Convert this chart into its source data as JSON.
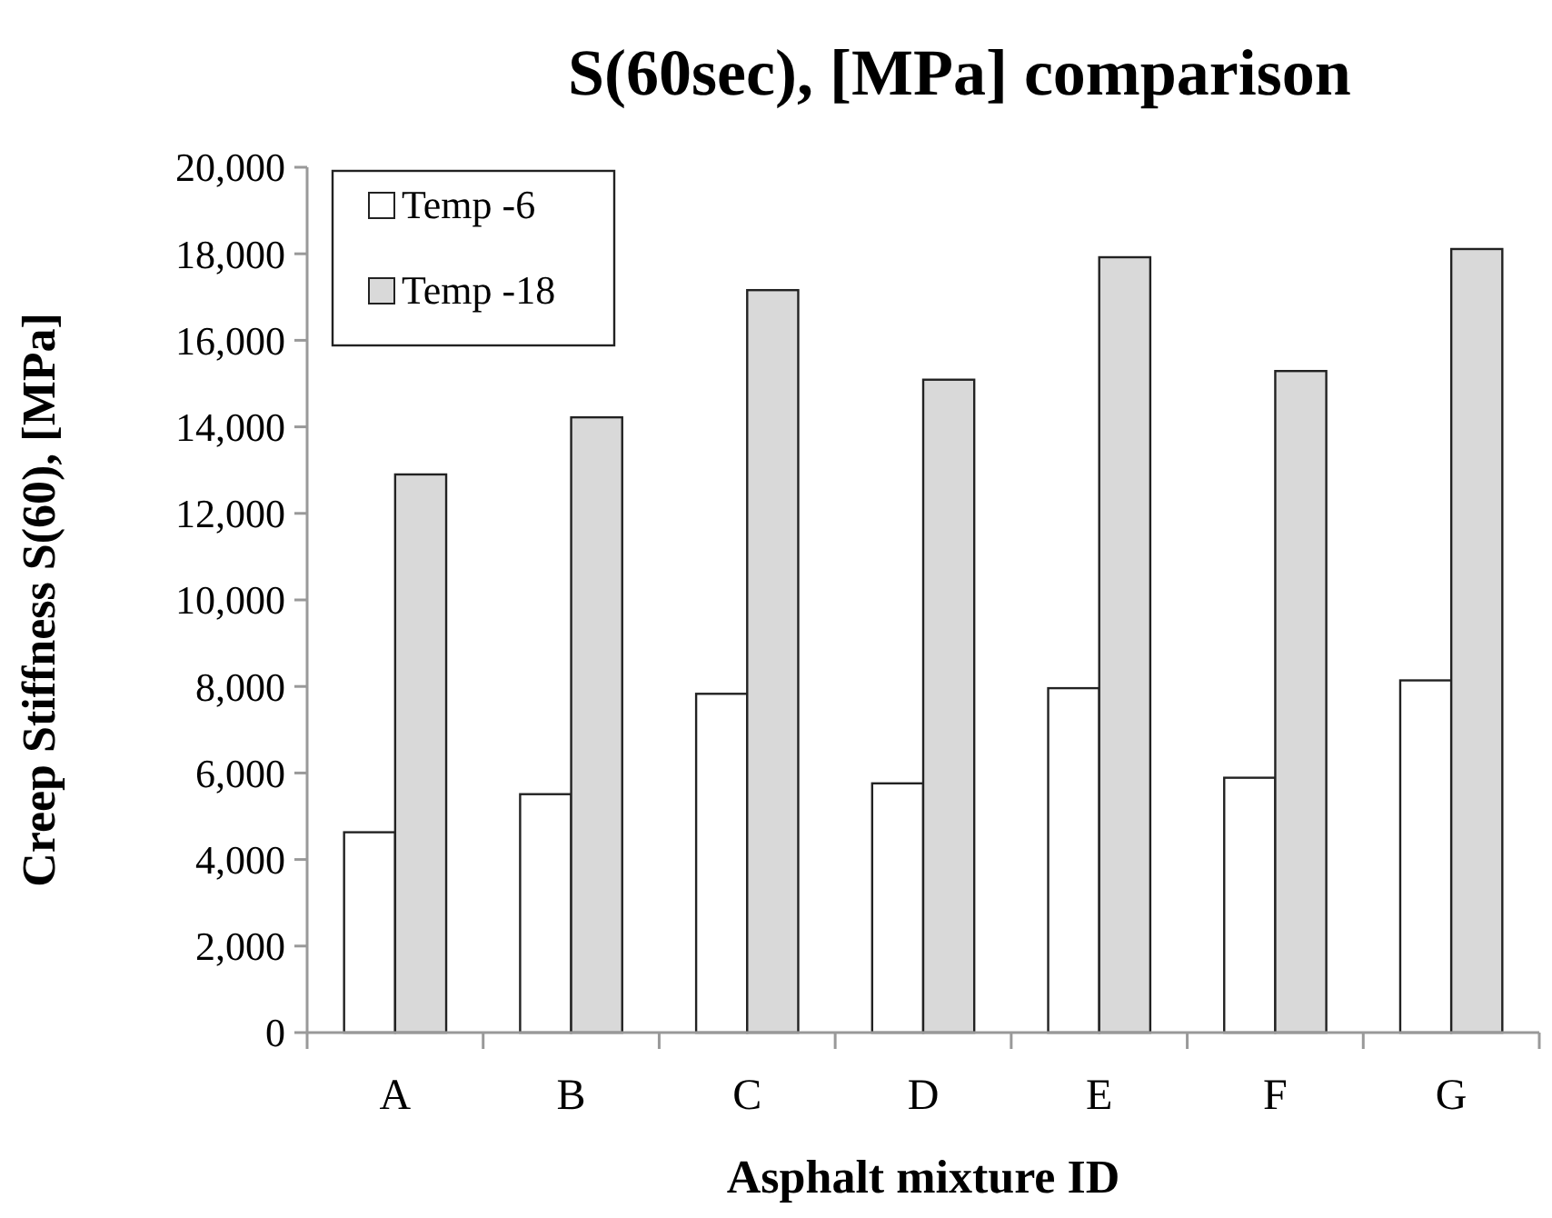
{
  "chart_data": {
    "type": "bar",
    "title": "S(60sec), [MPa] comparison",
    "xlabel": "Asphalt mixture  ID",
    "ylabel": "Creep Stiffness  S(60), [MPa]",
    "categories": [
      "A",
      "B",
      "C",
      "D",
      "E",
      "F",
      "G"
    ],
    "series": [
      {
        "name": "Temp -6",
        "color": "#ffffff",
        "values": [
          4630,
          5510,
          7830,
          5760,
          7960,
          5890,
          8140
        ]
      },
      {
        "name": "Temp -18",
        "color": "#d9d9d9",
        "values": [
          12900,
          14220,
          17160,
          15090,
          17920,
          15290,
          18110
        ]
      }
    ],
    "ylim": [
      0,
      20000
    ],
    "yticks": [
      {
        "value": 0,
        "label": "0"
      },
      {
        "value": 2000,
        "label": "2,000"
      },
      {
        "value": 4000,
        "label": "4,000"
      },
      {
        "value": 6000,
        "label": "6,000"
      },
      {
        "value": 8000,
        "label": "8,000"
      },
      {
        "value": 10000,
        "label": "10,000"
      },
      {
        "value": 12000,
        "label": "12,000"
      },
      {
        "value": 14000,
        "label": "14,000"
      },
      {
        "value": 16000,
        "label": "16,000"
      },
      {
        "value": 18000,
        "label": "18,000"
      },
      {
        "value": 20000,
        "label": "20,000"
      }
    ],
    "grid": false,
    "legend": "top left"
  }
}
